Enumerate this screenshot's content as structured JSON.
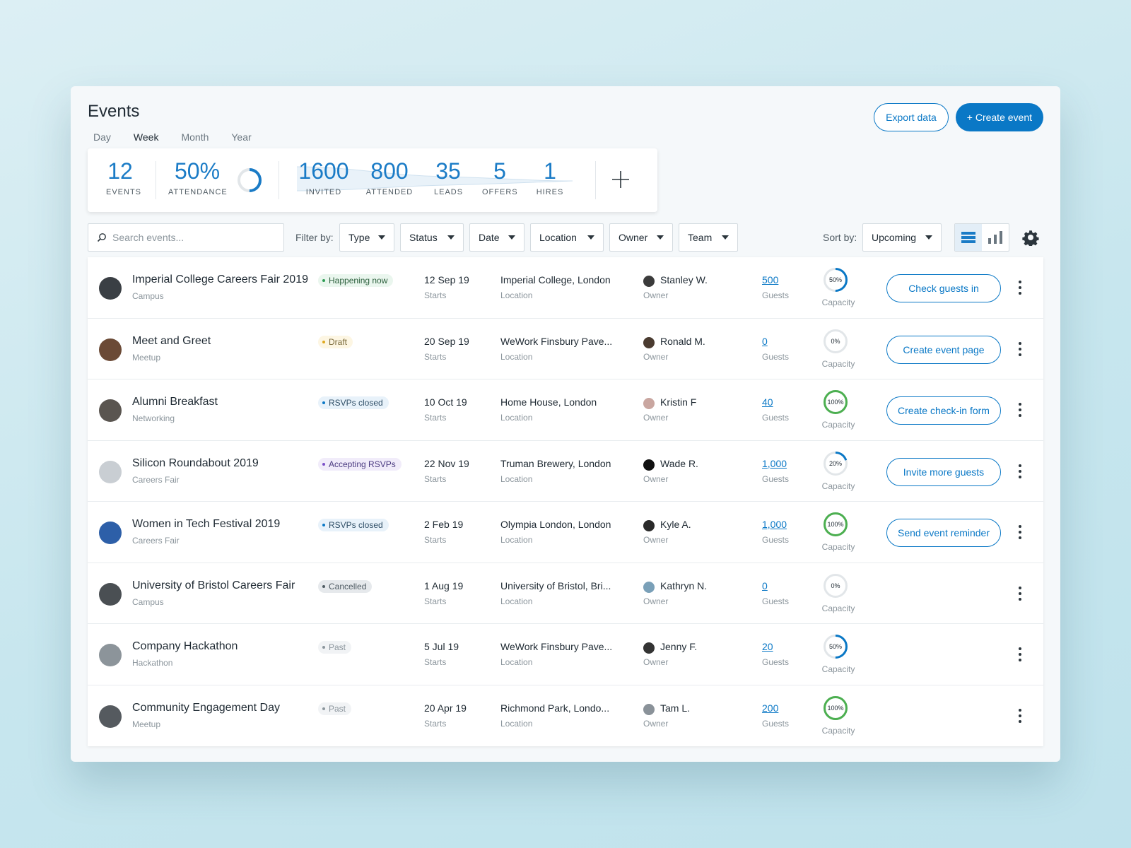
{
  "header": {
    "title": "Events",
    "export_label": "Export data",
    "create_label": "+ Create event"
  },
  "tabs": [
    {
      "label": "Day",
      "active": false
    },
    {
      "label": "Week",
      "active": true
    },
    {
      "label": "Month",
      "active": false
    },
    {
      "label": "Year",
      "active": false
    }
  ],
  "stats": {
    "events": {
      "value": "12",
      "label": "EVENTS"
    },
    "attendance": {
      "value": "50%",
      "label": "ATTENDANCE",
      "fraction": 0.5
    },
    "funnel": [
      {
        "value": "1600",
        "label": "INVITED"
      },
      {
        "value": "800",
        "label": "ATTENDED"
      },
      {
        "value": "35",
        "label": "LEADS"
      },
      {
        "value": "5",
        "label": "OFFERS"
      },
      {
        "value": "1",
        "label": "HIRES"
      }
    ]
  },
  "toolbar": {
    "search_placeholder": "Search events...",
    "filter_label": "Filter by:",
    "filters": [
      "Type",
      "Status",
      "Date",
      "Location",
      "Owner",
      "Team"
    ],
    "sort_label": "Sort by:",
    "sort_value": "Upcoming"
  },
  "labels": {
    "starts": "Starts",
    "location": "Location",
    "owner": "Owner",
    "guests": "Guests",
    "capacity": "Capacity"
  },
  "colors": {
    "accent": "#0a78c6",
    "capacity_full": "#4caf50",
    "ring_track": "#e2e6e9"
  },
  "events": [
    {
      "name": "Imperial College Careers Fair 2019",
      "type": "Campus",
      "status": "Happening now",
      "status_color": "#2e9e55",
      "status_bg": "#eaf6ee",
      "date": "12 Sep 19",
      "location": "Imperial College, London",
      "owner": "Stanley W.",
      "guests": "500",
      "capacity": "50%",
      "capacity_fraction": 0.5,
      "action": "Check guests in"
    },
    {
      "name": "Meet and Greet",
      "type": "Meetup",
      "status": "Draft",
      "status_color": "#e0a81c",
      "status_bg": "#fdf6e3",
      "date": "20 Sep 19",
      "location": "WeWork Finsbury Pave...",
      "owner": "Ronald M.",
      "guests": "0",
      "capacity": "0%",
      "capacity_fraction": 0,
      "action": "Create event page"
    },
    {
      "name": "Alumni Breakfast",
      "type": "Networking",
      "status": "RSVPs closed",
      "status_color": "#0a78c6",
      "status_bg": "#e8f2fa",
      "date": "10 Oct 19",
      "location": "Home House, London",
      "owner": "Kristin F",
      "guests": "40",
      "capacity": "100%",
      "capacity_fraction": 1,
      "action": "Create check-in form"
    },
    {
      "name": "Silicon Roundabout 2019",
      "type": "Careers Fair",
      "status": "Accepting RSVPs",
      "status_color": "#7b4fc9",
      "status_bg": "#f1ecfa",
      "date": "22 Nov 19",
      "location": "Truman Brewery, London",
      "owner": "Wade R.",
      "guests": "1,000",
      "capacity": "20%",
      "capacity_fraction": 0.2,
      "action": "Invite more guests"
    },
    {
      "name": "Women in Tech Festival 2019",
      "type": "Careers Fair",
      "status": "RSVPs closed",
      "status_color": "#0a78c6",
      "status_bg": "#e8f2fa",
      "date": "2 Feb 19",
      "location": "Olympia London, London",
      "owner": "Kyle A.",
      "guests": "1,000",
      "capacity": "100%",
      "capacity_fraction": 1,
      "action": "Send event reminder"
    },
    {
      "name": "University of Bristol Careers Fair",
      "type": "Campus",
      "status": "Cancelled",
      "status_color": "#4f5b63",
      "status_bg": "#e6e9ec",
      "date": "1 Aug 19",
      "location": "University of Bristol, Bri...",
      "owner": "Kathryn N.",
      "guests": "0",
      "capacity": "0%",
      "capacity_fraction": 0,
      "action": ""
    },
    {
      "name": "Company Hackathon",
      "type": "Hackathon",
      "status": "Past",
      "status_color": "#8b959c",
      "status_bg": "#f1f3f5",
      "date": "5 Jul 19",
      "location": "WeWork Finsbury Pave...",
      "owner": "Jenny F.",
      "guests": "20",
      "capacity": "50%",
      "capacity_fraction": 0.5,
      "action": ""
    },
    {
      "name": "Community Engagement Day",
      "type": "Meetup",
      "status": "Past",
      "status_color": "#8b959c",
      "status_bg": "#f1f3f5",
      "date": "20 Apr 19",
      "location": "Richmond Park, Londo...",
      "owner": "Tam L.",
      "guests": "200",
      "capacity": "100%",
      "capacity_fraction": 1,
      "action": ""
    }
  ]
}
